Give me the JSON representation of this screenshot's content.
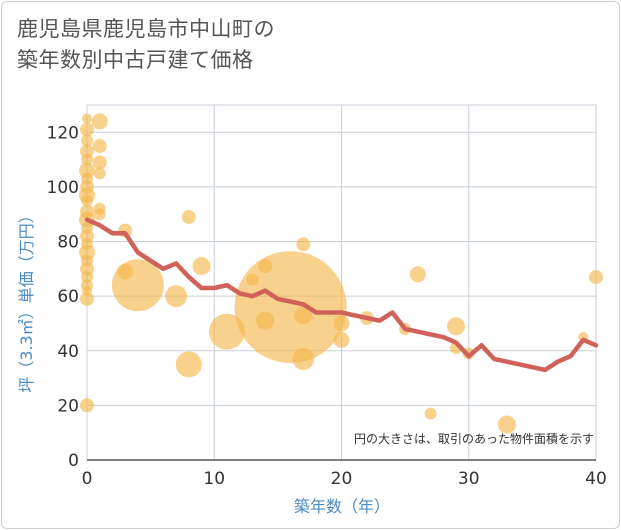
{
  "chart_data": {
    "type": "scatter",
    "title_line1": "鹿児島県鹿児島市中山町の",
    "title_line2": "築年数別中古戸建て価格",
    "xlabel": "築年数（年）",
    "ylabel": "坪（3.3㎡）単価（万円）",
    "xlim": [
      0,
      40
    ],
    "ylim": [
      0,
      130
    ],
    "xticks": [
      0,
      10,
      20,
      30,
      40
    ],
    "yticks": [
      0,
      20,
      40,
      60,
      80,
      100,
      120
    ],
    "grid": true,
    "note": "円の大きさは、取引のあった物件面積を示す",
    "colors": {
      "bubble": "#f5b850",
      "line": "#d0625a",
      "grid": "#c8d0d8",
      "axis_text": "#4a8cc4"
    },
    "bubbles": [
      {
        "x": 0,
        "y": 125,
        "s": 5
      },
      {
        "x": 0,
        "y": 121,
        "s": 7
      },
      {
        "x": 0,
        "y": 117,
        "s": 6
      },
      {
        "x": 0,
        "y": 113,
        "s": 7
      },
      {
        "x": 0,
        "y": 110,
        "s": 6
      },
      {
        "x": 0,
        "y": 106,
        "s": 8
      },
      {
        "x": 0,
        "y": 103,
        "s": 6
      },
      {
        "x": 0,
        "y": 100,
        "s": 7
      },
      {
        "x": 0,
        "y": 97,
        "s": 8
      },
      {
        "x": 0,
        "y": 95,
        "s": 6
      },
      {
        "x": 0,
        "y": 91,
        "s": 7
      },
      {
        "x": 0,
        "y": 88,
        "s": 8
      },
      {
        "x": 0,
        "y": 85,
        "s": 6
      },
      {
        "x": 0,
        "y": 82,
        "s": 7
      },
      {
        "x": 0,
        "y": 79,
        "s": 6
      },
      {
        "x": 0,
        "y": 76,
        "s": 8
      },
      {
        "x": 0,
        "y": 73,
        "s": 6
      },
      {
        "x": 0,
        "y": 70,
        "s": 7
      },
      {
        "x": 0,
        "y": 67,
        "s": 6
      },
      {
        "x": 0,
        "y": 64,
        "s": 6
      },
      {
        "x": 0,
        "y": 62,
        "s": 5
      },
      {
        "x": 0,
        "y": 59,
        "s": 7
      },
      {
        "x": 0,
        "y": 20,
        "s": 7
      },
      {
        "x": 1,
        "y": 124,
        "s": 8
      },
      {
        "x": 1,
        "y": 115,
        "s": 7
      },
      {
        "x": 1,
        "y": 109,
        "s": 7
      },
      {
        "x": 1,
        "y": 105,
        "s": 6
      },
      {
        "x": 1,
        "y": 92,
        "s": 6
      },
      {
        "x": 1,
        "y": 90,
        "s": 6
      },
      {
        "x": 3,
        "y": 84,
        "s": 7
      },
      {
        "x": 3,
        "y": 69,
        "s": 8
      },
      {
        "x": 4,
        "y": 64,
        "s": 26
      },
      {
        "x": 7,
        "y": 60,
        "s": 11
      },
      {
        "x": 8,
        "y": 89,
        "s": 7
      },
      {
        "x": 8,
        "y": 35,
        "s": 13
      },
      {
        "x": 9,
        "y": 71,
        "s": 9
      },
      {
        "x": 11,
        "y": 47,
        "s": 18
      },
      {
        "x": 13,
        "y": 66,
        "s": 6
      },
      {
        "x": 14,
        "y": 71,
        "s": 7
      },
      {
        "x": 14,
        "y": 51,
        "s": 9
      },
      {
        "x": 16,
        "y": 56,
        "s": 56
      },
      {
        "x": 17,
        "y": 79,
        "s": 7
      },
      {
        "x": 17,
        "y": 53,
        "s": 9
      },
      {
        "x": 17,
        "y": 37,
        "s": 11
      },
      {
        "x": 20,
        "y": 50,
        "s": 8
      },
      {
        "x": 20,
        "y": 44,
        "s": 8
      },
      {
        "x": 22,
        "y": 52,
        "s": 7
      },
      {
        "x": 25,
        "y": 48,
        "s": 6
      },
      {
        "x": 26,
        "y": 68,
        "s": 8
      },
      {
        "x": 27,
        "y": 17,
        "s": 6
      },
      {
        "x": 29,
        "y": 49,
        "s": 9
      },
      {
        "x": 29,
        "y": 41,
        "s": 6
      },
      {
        "x": 30,
        "y": 39,
        "s": 6
      },
      {
        "x": 33,
        "y": 13,
        "s": 9
      },
      {
        "x": 39,
        "y": 45,
        "s": 5
      },
      {
        "x": 40,
        "y": 67,
        "s": 7
      }
    ],
    "series": [
      {
        "x": [
          0,
          1,
          2,
          3,
          4,
          5,
          6,
          7,
          8,
          9,
          10,
          11,
          12,
          13,
          14,
          15,
          16,
          17,
          18,
          19,
          20,
          21,
          22,
          23,
          24,
          25,
          26,
          27,
          28,
          29,
          30,
          31,
          32,
          33,
          34,
          35,
          36,
          37,
          38,
          39,
          40
        ],
        "y": [
          88,
          86,
          83,
          83,
          76,
          73,
          70,
          72,
          67,
          63,
          63,
          64,
          61,
          60,
          62,
          59,
          58,
          57,
          54,
          54,
          54,
          53,
          52,
          51,
          54,
          48,
          47,
          46,
          45,
          43,
          38,
          42,
          37,
          36,
          35,
          34,
          33,
          36,
          38,
          44,
          42
        ]
      }
    ]
  }
}
